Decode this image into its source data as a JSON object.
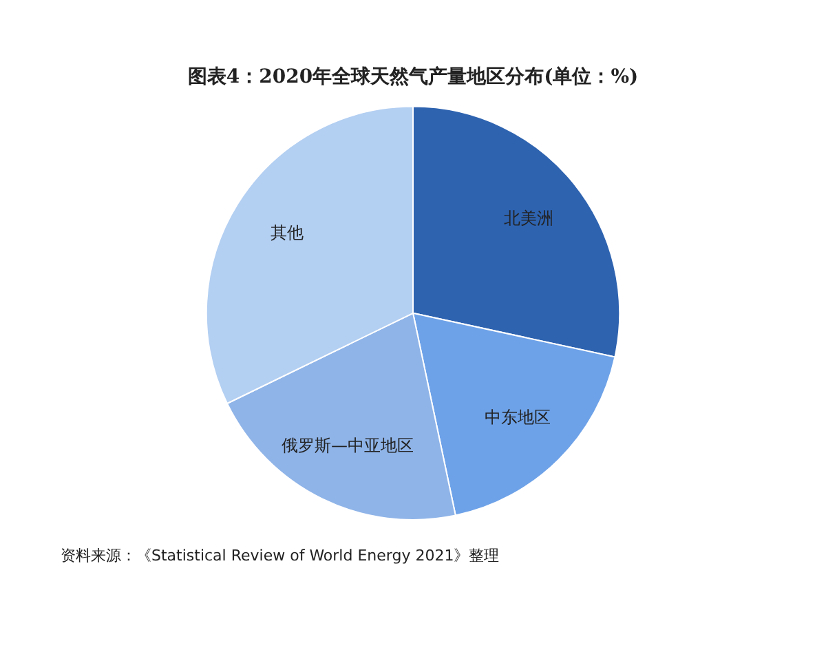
{
  "chart_data": {
    "type": "pie",
    "title": "图表4：2020年全球天然气产量地区分布(单位：%)",
    "categories": [
      "北美洲",
      "中东地区",
      "俄罗斯—中亚地区",
      "其他"
    ],
    "values": [
      28.4,
      18.3,
      21.1,
      32.2
    ],
    "colors": [
      "#2e63b0",
      "#6ea2e8",
      "#8fb4e8",
      "#b3cff2"
    ],
    "legend": false,
    "annotations": [
      "资料来源：《Statistical Review of World Energy 2021》整理"
    ]
  }
}
